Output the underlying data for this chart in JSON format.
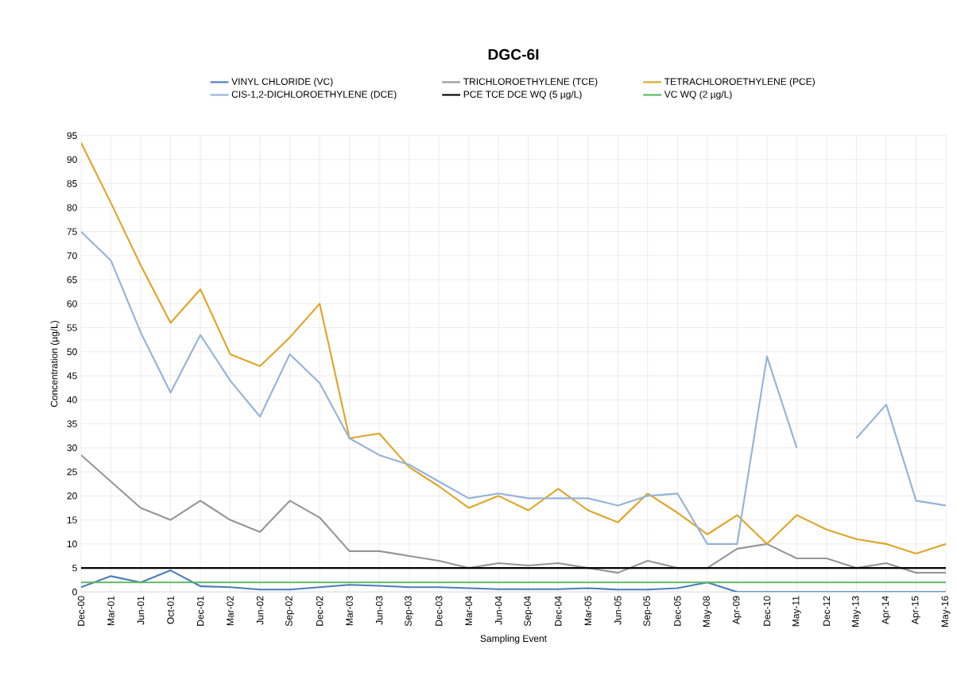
{
  "chart_data": {
    "type": "line",
    "title": "DGC-6I",
    "xlabel": "Sampling Event",
    "ylabel": "Concentration (µg/L)",
    "categories": [
      "Dec-00",
      "Mar-01",
      "Jun-01",
      "Oct-01",
      "Dec-01",
      "Mar-02",
      "Jun-02",
      "Sep-02",
      "Dec-02",
      "Mar-03",
      "Jun-03",
      "Sep-03",
      "Dec-03",
      "Mar-04",
      "Jun-04",
      "Sep-04",
      "Dec-04",
      "Mar-05",
      "Jun-05",
      "Sep-05",
      "Dec-05",
      "May-08",
      "Apr-09",
      "Dec-10",
      "May-11",
      "Dec-12",
      "May-13",
      "Apr-14",
      "Apr-15",
      "May-16"
    ],
    "series": [
      {
        "name": "VINYL CHLORIDE (VC)",
        "color": "#4a7ebb",
        "values": [
          1,
          3.3,
          2,
          4.5,
          1.2,
          1,
          0.5,
          0.5,
          1,
          1.5,
          1.3,
          1,
          1,
          0.8,
          0.6,
          0.6,
          0.6,
          0.8,
          0.5,
          0.5,
          0.8,
          2,
          0,
          0,
          0,
          0,
          0,
          0,
          0,
          0
        ]
      },
      {
        "name": "TRICHLOROETHYLENE (TCE)",
        "color": "#969696",
        "values": [
          28.5,
          23,
          17.5,
          15,
          19,
          15,
          12.5,
          19,
          15.5,
          8.5,
          8.5,
          7.5,
          6.5,
          5,
          6,
          5.5,
          6,
          5,
          4,
          6.5,
          5,
          5,
          9,
          10,
          7,
          7,
          5,
          6,
          4,
          4
        ]
      },
      {
        "name": "TETRACHLOROETHYLENE (PCE)",
        "color": "#e0a526",
        "values": [
          93.5,
          81,
          68,
          56,
          63,
          49.5,
          47,
          53,
          60,
          32,
          33,
          26,
          22,
          17.5,
          20,
          17,
          21.5,
          17,
          14.5,
          20.5,
          16.5,
          12,
          16,
          10,
          16,
          13,
          11,
          10,
          8,
          10
        ]
      },
      {
        "name": "CIS-1,2-DICHLOROETHYLENE (DCE)",
        "color": "#95b3d7",
        "values": [
          75,
          69,
          54,
          41.5,
          53.5,
          44,
          36.5,
          49.5,
          43.5,
          32,
          28.5,
          26.5,
          23,
          19.5,
          20.5,
          19.5,
          19.5,
          19.5,
          18,
          20,
          20.5,
          10,
          10,
          49,
          30,
          null,
          32,
          39,
          19,
          18
        ]
      }
    ],
    "ref_lines": [
      {
        "axis": "y",
        "value": 5,
        "label": "PCE TCE DCE WQ (5 µg/L)",
        "color": "#000000"
      },
      {
        "axis": "y",
        "value": 2,
        "label": "VC WQ (2 µg/L)",
        "color": "#5cb85c"
      }
    ],
    "ylim": [
      0,
      95
    ],
    "yticks": [
      0,
      5,
      10,
      15,
      20,
      25,
      30,
      35,
      40,
      45,
      50,
      55,
      60,
      65,
      70,
      75,
      80,
      85,
      90,
      95
    ],
    "grid": true,
    "legend": "top"
  }
}
